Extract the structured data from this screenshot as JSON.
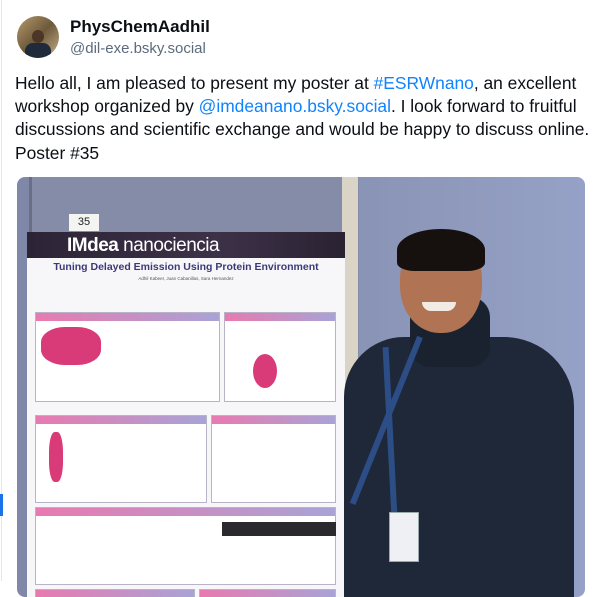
{
  "author": {
    "display_name": "PhysChemAadhil",
    "handle": "@dil-exe.bsky.social"
  },
  "post": {
    "text_1": "Hello all, I am pleased to present my poster at ",
    "hashtag": "#ESRWnano",
    "text_2": ", an excellent workshop organized by ",
    "mention": "@imdeanano.bsky.social",
    "text_3": ". I look forward to fruitful discussions and scientific exchange and would be happy to discuss online. Poster #35"
  },
  "photo": {
    "poster_number": "35",
    "poster_logo_bold": "IMdea",
    "poster_logo_rest": " nanociencia",
    "poster_title": "Tuning Delayed Emission Using Protein Environment",
    "poster_authors": "Adhil Kabeer, Juan Cabanillas, Sara Hernandez"
  },
  "colors": {
    "link": "#1083fe",
    "text": "#0b0f14",
    "handle": "#5b6b7c"
  }
}
